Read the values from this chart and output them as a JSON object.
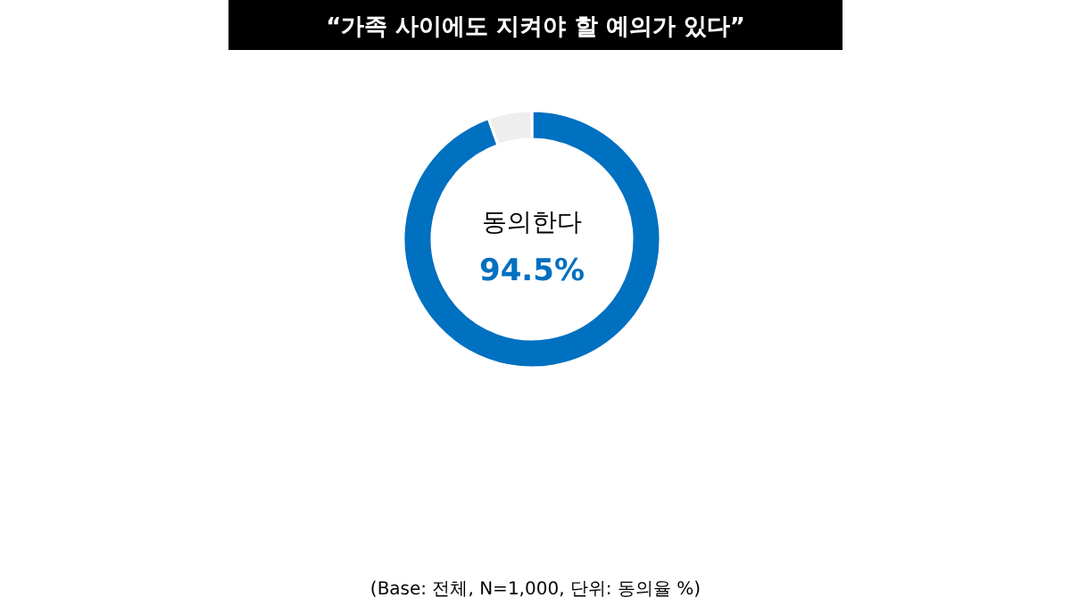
{
  "chart_data": {
    "type": "donut",
    "title": "“가족 사이에도 지켜야 할 예의가 있다”",
    "categories": [
      "동의한다",
      null
    ],
    "values": [
      94.5,
      5.5
    ],
    "colors": [
      "#0070c0",
      "#eeeeee"
    ],
    "value_labels": [
      "94.5%",
      null
    ],
    "annotations": [
      "(Base: 전체, N=1,000, 단위: 동의율 %)"
    ]
  }
}
